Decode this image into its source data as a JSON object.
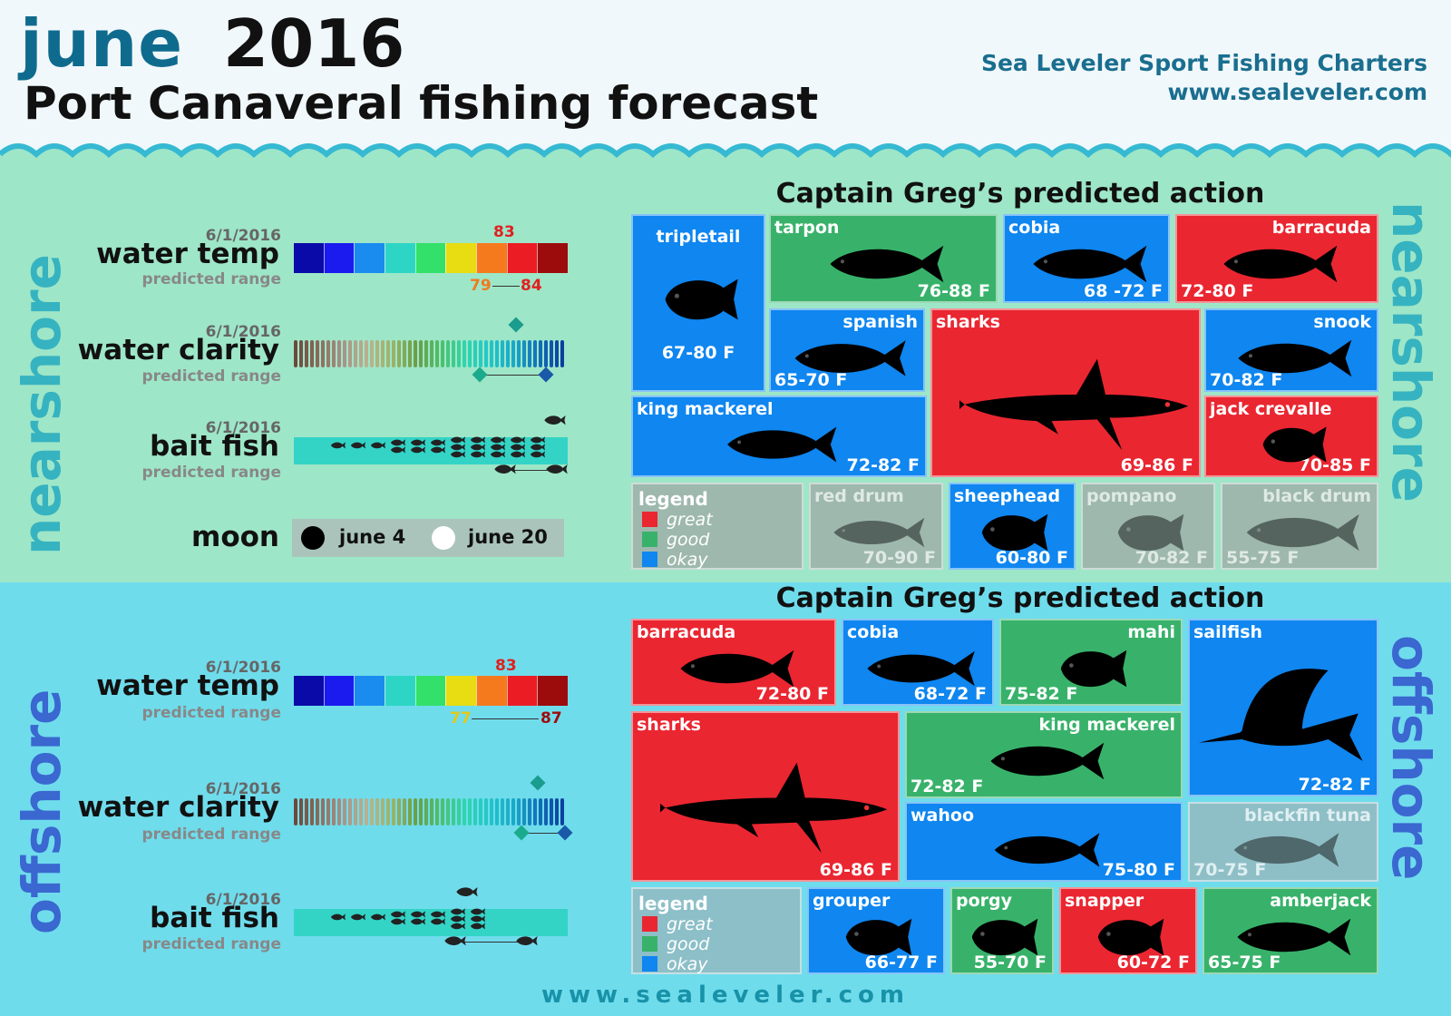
{
  "header": {
    "month": "june",
    "year": "2016",
    "subtitle": "Port Canaveral fishing forecast",
    "company": "Sea Leveler Sport Fishing Charters",
    "website": "www.sealeveler.com"
  },
  "colors": {
    "great": "#ea2631",
    "good": "#38b26a",
    "okay": "#0f86f0",
    "temp_scale": [
      "#0a0aa8",
      "#1b1bf0",
      "#1a8cf0",
      "#2dd6c4",
      "#33e06a",
      "#e8dc12",
      "#f57a1e",
      "#ec1c24",
      "#9c0c0c"
    ],
    "clarity_scale": [
      "#6b4a3a",
      "#8a6e5e",
      "#a99488",
      "#b9b38e",
      "#9bb36a",
      "#6a9e48",
      "#4fbf6a",
      "#2fd6b0",
      "#23c6c8",
      "#1aa8c8",
      "#1270b8",
      "#0d3fa0"
    ]
  },
  "nearshore": {
    "section_label": "nearshore",
    "predicted_title": "Captain Greg’s predicted action",
    "water_temp": {
      "date": "6/1/2016",
      "label": "water temp",
      "sublabel": "predicted range",
      "current": "83",
      "range_low": "79",
      "range_high": "84"
    },
    "water_clarity": {
      "date": "6/1/2016",
      "label": "water clarity",
      "sublabel": "predicted range",
      "current_pct": 0.81,
      "range_low_pct": 0.68,
      "range_high_pct": 0.92
    },
    "bait_fish": {
      "date": "6/1/2016",
      "label": "bait fish",
      "sublabel": "predicted range",
      "current_pct": 0.95,
      "range_low_pct": 0.77,
      "range_high_pct": 0.96
    },
    "moon": {
      "label": "moon",
      "new_moon": "june 4",
      "full_moon": "june 20"
    },
    "legend": {
      "title": "legend",
      "great": "great",
      "good": "good",
      "okay": "okay"
    },
    "fish": {
      "tripletail": {
        "name": "tripletail",
        "range": "67-80 F",
        "rating": "okay",
        "icon": "tripletail-icon"
      },
      "tarpon": {
        "name": "tarpon",
        "range": "76-88 F",
        "rating": "good",
        "icon": "tarpon-icon"
      },
      "cobia": {
        "name": "cobia",
        "range": "68 -72 F",
        "rating": "okay",
        "icon": "cobia-icon"
      },
      "barracuda": {
        "name": "barracuda",
        "range": "72-80 F",
        "rating": "great",
        "icon": "barracuda-icon"
      },
      "spanish": {
        "name": "spanish",
        "range": "65-70 F",
        "rating": "okay",
        "icon": "spanish-mackerel-icon"
      },
      "sharks": {
        "name": "sharks",
        "range": "69-86 F",
        "rating": "great",
        "icon": "shark-icon"
      },
      "snook": {
        "name": "snook",
        "range": "70-82 F",
        "rating": "okay",
        "icon": "snook-icon"
      },
      "king_mackerel": {
        "name": "king mackerel",
        "range": "72-82 F",
        "rating": "okay",
        "icon": "king-mackerel-icon"
      },
      "jack_crevalle": {
        "name": "jack crevalle",
        "range": "70-85 F",
        "rating": "great",
        "icon": "jack-crevalle-icon"
      },
      "red_drum": {
        "name": "red drum",
        "range": "70-90 F",
        "rating": "none",
        "icon": "red-drum-icon"
      },
      "sheephead": {
        "name": "sheephead",
        "range": "60-80 F",
        "rating": "okay",
        "icon": "sheephead-icon"
      },
      "pompano": {
        "name": "pompano",
        "range": "70-82 F",
        "rating": "none",
        "icon": "pompano-icon"
      },
      "black_drum": {
        "name": "black drum",
        "range": "55-75 F",
        "rating": "none",
        "icon": "black-drum-icon"
      }
    }
  },
  "offshore": {
    "section_label": "offshore",
    "predicted_title": "Captain Greg’s predicted action",
    "water_temp": {
      "date": "6/1/2016",
      "label": "water temp",
      "sublabel": "predicted range",
      "current": "83",
      "range_low": "77",
      "range_high": "87"
    },
    "water_clarity": {
      "date": "6/1/2016",
      "label": "water clarity",
      "sublabel": "predicted range",
      "current_pct": 0.89,
      "range_low_pct": 0.83,
      "range_high_pct": 0.99
    },
    "bait_fish": {
      "date": "6/1/2016",
      "label": "bait fish",
      "sublabel": "predicted range",
      "current_pct": 0.63,
      "range_low_pct": 0.59,
      "range_high_pct": 0.85
    },
    "legend": {
      "title": "legend",
      "great": "great",
      "good": "good",
      "okay": "okay"
    },
    "fish": {
      "barracuda": {
        "name": "barracuda",
        "range": "72-80 F",
        "rating": "great",
        "icon": "barracuda-icon"
      },
      "cobia": {
        "name": "cobia",
        "range": "68-72 F",
        "rating": "okay",
        "icon": "cobia-icon"
      },
      "mahi": {
        "name": "mahi",
        "range": "75-82 F",
        "rating": "good",
        "icon": "mahi-icon"
      },
      "sailfish": {
        "name": "sailfish",
        "range": "72-82 F",
        "rating": "okay",
        "icon": "sailfish-icon"
      },
      "sharks": {
        "name": "sharks",
        "range": "69-86 F",
        "rating": "great",
        "icon": "shark-icon"
      },
      "king_mackerel": {
        "name": "king mackerel",
        "range": "72-82 F",
        "rating": "good",
        "icon": "king-mackerel-icon"
      },
      "wahoo": {
        "name": "wahoo",
        "range": "75-80 F",
        "rating": "okay",
        "icon": "wahoo-icon"
      },
      "blackfin_tuna": {
        "name": "blackfin tuna",
        "range": "70-75 F",
        "rating": "none",
        "icon": "blackfin-tuna-icon"
      },
      "grouper": {
        "name": "grouper",
        "range": "66-77 F",
        "rating": "okay",
        "icon": "grouper-icon"
      },
      "porgy": {
        "name": "porgy",
        "range": "55-70 F",
        "rating": "good",
        "icon": "porgy-icon"
      },
      "snapper": {
        "name": "snapper",
        "range": "60-72 F",
        "rating": "great",
        "icon": "snapper-icon"
      },
      "amberjack": {
        "name": "amberjack",
        "range": "65-75 F",
        "rating": "good",
        "icon": "amberjack-icon"
      }
    }
  },
  "footer": {
    "website": "www.sealeveler.com"
  }
}
